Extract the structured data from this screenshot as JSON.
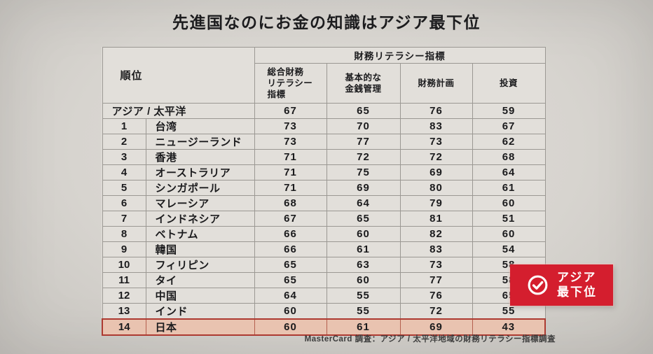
{
  "page": {
    "title": "先進国なのにお金の知識はアジア最下位",
    "colors": {
      "page_bg": "#d7d4cf",
      "table_bg": "#e2dfda",
      "grid": "#9b9893",
      "text": "#1b1b1d",
      "highlight_row_bg": "#e9c3b0",
      "highlight_row_border": "#ad3a31",
      "badge_bg": "#d41e2e",
      "badge_text": "#ffffff"
    }
  },
  "badge": {
    "icon": "check-circle-icon",
    "line1": "アジア",
    "line2": "最下位"
  },
  "chart_data": {
    "type": "table",
    "title": "先進国なのにお金の知識はアジア最下位",
    "header": {
      "rank_label": "順位",
      "group_label": "財務リテラシー指標",
      "sub_columns": [
        "総合財務\nリテラシー\n指標",
        "基本的な\n金銭管理",
        "財務計画",
        "投資"
      ]
    },
    "rows": [
      {
        "rank": "",
        "name": "アジア / 太平洋",
        "merged": true,
        "highlight": false,
        "scores": [
          67,
          65,
          76,
          59
        ]
      },
      {
        "rank": "1",
        "name": "台湾",
        "merged": false,
        "highlight": false,
        "scores": [
          73,
          70,
          83,
          67
        ]
      },
      {
        "rank": "2",
        "name": "ニュージーランド",
        "merged": false,
        "highlight": false,
        "scores": [
          73,
          77,
          73,
          62
        ]
      },
      {
        "rank": "3",
        "name": "香港",
        "merged": false,
        "highlight": false,
        "scores": [
          71,
          72,
          72,
          68
        ]
      },
      {
        "rank": "4",
        "name": "オーストラリア",
        "merged": false,
        "highlight": false,
        "scores": [
          71,
          75,
          69,
          64
        ]
      },
      {
        "rank": "5",
        "name": "シンガポール",
        "merged": false,
        "highlight": false,
        "scores": [
          71,
          69,
          80,
          61
        ]
      },
      {
        "rank": "6",
        "name": "マレーシア",
        "merged": false,
        "highlight": false,
        "scores": [
          68,
          64,
          79,
          60
        ]
      },
      {
        "rank": "7",
        "name": "インドネシア",
        "merged": false,
        "highlight": false,
        "scores": [
          67,
          65,
          81,
          51
        ]
      },
      {
        "rank": "8",
        "name": "ベトナム",
        "merged": false,
        "highlight": false,
        "scores": [
          66,
          60,
          82,
          60
        ]
      },
      {
        "rank": "9",
        "name": "韓国",
        "merged": false,
        "highlight": false,
        "scores": [
          66,
          61,
          83,
          54
        ]
      },
      {
        "rank": "10",
        "name": "フィリピン",
        "merged": false,
        "highlight": false,
        "scores": [
          65,
          63,
          73,
          58
        ]
      },
      {
        "rank": "11",
        "name": "タイ",
        "merged": false,
        "highlight": false,
        "scores": [
          65,
          60,
          77,
          58
        ]
      },
      {
        "rank": "12",
        "name": "中国",
        "merged": false,
        "highlight": false,
        "scores": [
          64,
          55,
          76,
          65
        ]
      },
      {
        "rank": "13",
        "name": "インド",
        "merged": false,
        "highlight": false,
        "scores": [
          60,
          55,
          72,
          55
        ]
      },
      {
        "rank": "14",
        "name": "日本",
        "merged": false,
        "highlight": true,
        "scores": [
          60,
          61,
          69,
          43
        ]
      }
    ],
    "source": "MasterCard 調査：アジア / 太平洋地域の財務リテラシー指標調査"
  }
}
